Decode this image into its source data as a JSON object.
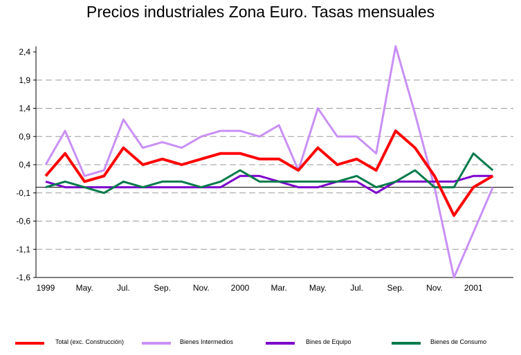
{
  "chart_data": {
    "type": "line",
    "title": "Precios industriales Zona Euro. Tasas mensuales",
    "xlabel": "",
    "ylabel": "",
    "ylim": [
      -1.6,
      2.4
    ],
    "yticks": [
      "2,4",
      "1,9",
      "1,4",
      "0,9",
      "0,4",
      "-0,1",
      "-0,6",
      "-1,1",
      "-1,6"
    ],
    "ytick_values": [
      2.4,
      1.9,
      1.4,
      0.9,
      0.4,
      -0.1,
      -0.6,
      -1.1,
      -1.6
    ],
    "x_tick_labels": [
      {
        "index": 0,
        "label": "1999"
      },
      {
        "index": 2,
        "label": "May."
      },
      {
        "index": 4,
        "label": "Jul."
      },
      {
        "index": 6,
        "label": "Sep."
      },
      {
        "index": 8,
        "label": "Nov."
      },
      {
        "index": 10,
        "label": "2000"
      },
      {
        "index": 12,
        "label": "Mar."
      },
      {
        "index": 14,
        "label": "May."
      },
      {
        "index": 16,
        "label": "Jul."
      },
      {
        "index": 18,
        "label": "Sep."
      },
      {
        "index": 20,
        "label": "Nov."
      },
      {
        "index": 22,
        "label": "2001"
      }
    ],
    "grid": true,
    "legend_position": "bottom",
    "series": [
      {
        "name": "Total (exc. Construcción)",
        "color": "#ff0000",
        "values": [
          0.2,
          0.6,
          0.1,
          0.2,
          0.7,
          0.4,
          0.5,
          0.4,
          0.5,
          0.6,
          0.6,
          0.5,
          0.5,
          0.3,
          0.7,
          0.4,
          0.5,
          0.3,
          1.0,
          0.7,
          0.2,
          -0.5,
          0.0,
          0.2
        ]
      },
      {
        "name": "Bienes Intermedios",
        "color": "#c98ff5",
        "values": [
          0.4,
          1.0,
          0.2,
          0.3,
          1.2,
          0.7,
          0.8,
          0.7,
          0.9,
          1.0,
          1.0,
          0.9,
          1.1,
          0.3,
          1.4,
          0.9,
          0.9,
          0.6,
          2.5,
          1.3,
          0.0,
          -1.6,
          -0.8,
          0.0
        ]
      },
      {
        "name": "Bines de Equipo",
        "color": "#7b00cc",
        "values": [
          0.1,
          0.0,
          0.0,
          0.0,
          0.0,
          0.0,
          0.0,
          0.0,
          0.0,
          0.0,
          0.2,
          0.2,
          0.1,
          0.0,
          0.0,
          0.1,
          0.1,
          -0.1,
          0.1,
          0.1,
          0.1,
          0.1,
          0.2,
          0.2
        ]
      },
      {
        "name": "Bienes de Consumo",
        "color": "#007a4a",
        "values": [
          0.0,
          0.1,
          0.0,
          -0.1,
          0.1,
          0.0,
          0.1,
          0.1,
          0.0,
          0.1,
          0.3,
          0.1,
          0.1,
          0.1,
          0.1,
          0.1,
          0.2,
          0.0,
          0.1,
          0.3,
          0.0,
          0.0,
          0.6,
          0.3
        ]
      }
    ]
  }
}
